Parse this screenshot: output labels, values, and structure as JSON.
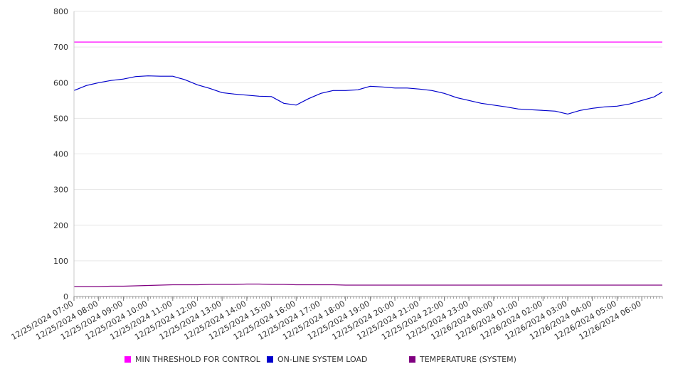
{
  "chart_data": {
    "type": "line",
    "title": "",
    "xlabel": "",
    "ylabel": "",
    "ylim": [
      0,
      800
    ],
    "y_ticks": [
      0,
      100,
      200,
      300,
      400,
      500,
      600,
      700,
      800
    ],
    "grid": true,
    "legend_placement": "bottom",
    "x_tick_labels": [
      "12/25/2024 07:00",
      "12/25/2024 08:00",
      "12/25/2024 09:00",
      "12/25/2024 10:00",
      "12/25/2024 11:00",
      "12/25/2024 12:00",
      "12/25/2024 13:00",
      "12/25/2024 14:00",
      "12/25/2024 15:00",
      "12/25/2024 16:00",
      "12/25/2024 17:00",
      "12/25/2024 18:00",
      "12/25/2024 19:00",
      "12/25/2024 20:00",
      "12/25/2024 21:00",
      "12/25/2024 22:00",
      "12/25/2024 23:00",
      "12/26/2024 00:00",
      "12/26/2024 01:00",
      "12/26/2024 02:00",
      "12/26/2024 03:00",
      "12/26/2024 04:00",
      "12/26/2024 05:00",
      "12/26/2024 06:00"
    ],
    "x": [
      "12/25/2024 07:00",
      "12/25/2024 07:30",
      "12/25/2024 08:00",
      "12/25/2024 08:30",
      "12/25/2024 09:00",
      "12/25/2024 09:30",
      "12/25/2024 10:00",
      "12/25/2024 10:30",
      "12/25/2024 11:00",
      "12/25/2024 11:30",
      "12/25/2024 12:00",
      "12/25/2024 12:30",
      "12/25/2024 13:00",
      "12/25/2024 13:30",
      "12/25/2024 14:00",
      "12/25/2024 14:30",
      "12/25/2024 15:00",
      "12/25/2024 15:30",
      "12/25/2024 16:00",
      "12/25/2024 16:30",
      "12/25/2024 17:00",
      "12/25/2024 17:30",
      "12/25/2024 18:00",
      "12/25/2024 18:30",
      "12/25/2024 19:00",
      "12/25/2024 19:30",
      "12/25/2024 20:00",
      "12/25/2024 20:30",
      "12/25/2024 21:00",
      "12/25/2024 21:30",
      "12/25/2024 22:00",
      "12/25/2024 22:30",
      "12/25/2024 23:00",
      "12/25/2024 23:30",
      "12/26/2024 00:00",
      "12/26/2024 00:30",
      "12/26/2024 01:00",
      "12/26/2024 01:30",
      "12/26/2024 02:00",
      "12/26/2024 02:30",
      "12/26/2024 03:00",
      "12/26/2024 03:30",
      "12/26/2024 04:00",
      "12/26/2024 04:30",
      "12/26/2024 05:00",
      "12/26/2024 05:30",
      "12/26/2024 06:00",
      "12/26/2024 06:30",
      "12/26/2024 06:50"
    ],
    "series": [
      {
        "name": "MIN THRESHOLD FOR CONTROL",
        "color": "#ff00ff",
        "values": [
          714,
          714,
          714,
          714,
          714,
          714,
          714,
          714,
          714,
          714,
          714,
          714,
          714,
          714,
          714,
          714,
          714,
          714,
          714,
          714,
          714,
          714,
          714,
          714,
          714,
          714,
          714,
          714,
          714,
          714,
          714,
          714,
          714,
          714,
          714,
          714,
          714,
          714,
          714,
          714,
          714,
          714,
          714,
          714,
          714,
          714,
          714,
          714,
          714
        ]
      },
      {
        "name": "ON-LINE SYSTEM LOAD",
        "color": "#0000cc",
        "values": [
          578,
          592,
          600,
          606,
          610,
          617,
          619,
          618,
          618,
          608,
          594,
          584,
          572,
          568,
          565,
          562,
          561,
          542,
          537,
          555,
          570,
          578,
          578,
          580,
          590,
          588,
          585,
          585,
          582,
          578,
          570,
          558,
          550,
          542,
          537,
          532,
          526,
          524,
          522,
          520,
          512,
          522,
          528,
          532,
          534,
          540,
          550,
          560,
          574
        ]
      },
      {
        "name": "TEMPERATURE (SYSTEM)",
        "color": "#800080",
        "values": [
          28,
          28,
          28,
          29,
          29,
          30,
          31,
          32,
          33,
          33,
          33,
          34,
          34,
          34,
          35,
          35,
          34,
          34,
          33,
          33,
          33,
          33,
          32,
          32,
          32,
          32,
          32,
          32,
          32,
          32,
          32,
          32,
          32,
          32,
          32,
          32,
          32,
          32,
          32,
          32,
          32,
          32,
          32,
          32,
          32,
          32,
          32,
          32,
          32
        ]
      }
    ]
  }
}
